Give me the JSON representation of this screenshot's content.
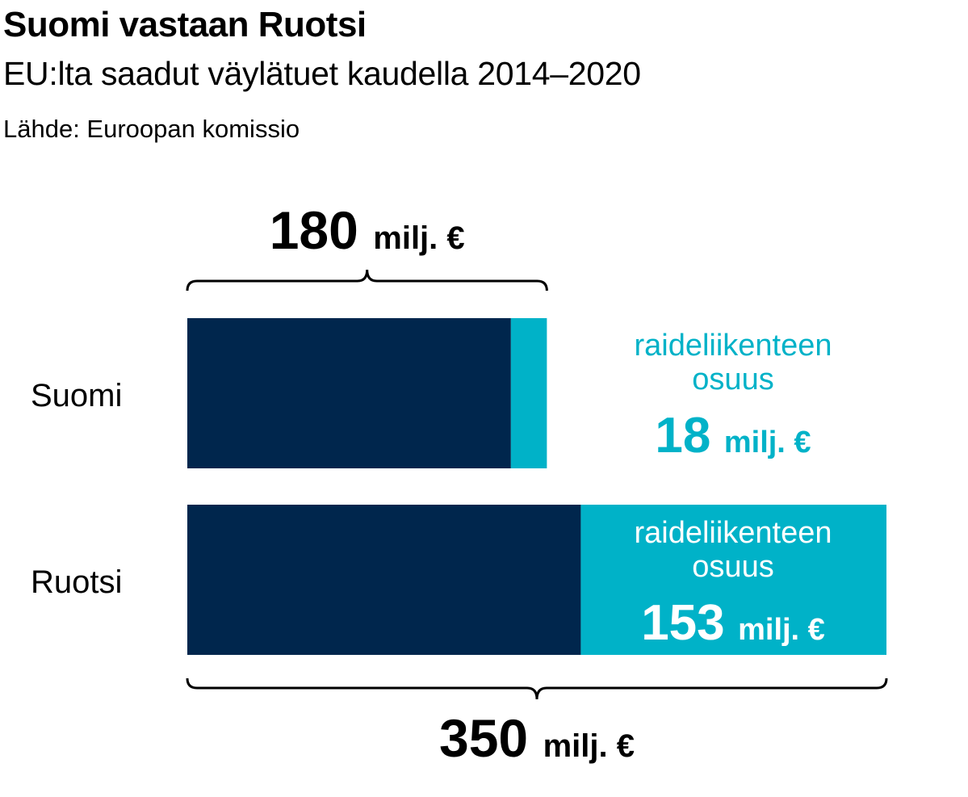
{
  "title": "Suomi vastaan Ruotsi",
  "subtitle": "EU:lta saadut väylätuet kaudella 2014–2020",
  "source": "Lähde: Euroopan komissio",
  "colors": {
    "total": "#00264d",
    "rail": "#00b2c8",
    "text": "#000000",
    "white": "#ffffff"
  },
  "chart_data": {
    "type": "bar",
    "orientation": "horizontal",
    "stacked": true,
    "categories": [
      "Suomi",
      "Ruotsi"
    ],
    "series": [
      {
        "values": [
          162,
          197
        ]
      },
      {
        "values": [
          18,
          153
        ]
      }
    ],
    "totals": [
      180,
      350
    ],
    "total_labels": [
      {
        "number": "180",
        "unit": "milj. €"
      },
      {
        "number": "350",
        "unit": "milj. €"
      }
    ],
    "rail_labels": [
      {
        "line1": "raideliikenteen",
        "line2": "osuus",
        "number": "18",
        "unit": "milj. €"
      },
      {
        "line1": "raideliikenteen",
        "line2": "osuus",
        "number": "153",
        "unit": "milj. €"
      }
    ],
    "xlim": [
      0,
      350
    ]
  }
}
